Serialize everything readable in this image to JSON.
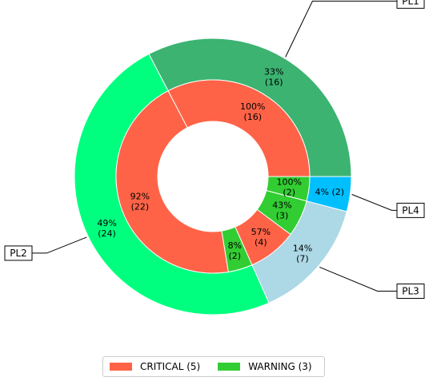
{
  "chart_data": {
    "type": "pie",
    "variant": "nested-donut",
    "outer_ring": [
      {
        "label": "PL1",
        "percent": 33,
        "count": 16,
        "color": "#3cb371"
      },
      {
        "label": "PL2",
        "percent": 49,
        "count": 24,
        "color": "#00ff7f"
      },
      {
        "label": "PL3",
        "percent": 14,
        "count": 7,
        "color": "#add8e6"
      },
      {
        "label": "PL4",
        "percent": 4,
        "count": 2,
        "color": "#00bfff"
      }
    ],
    "inner_ring": [
      {
        "group": "PL1",
        "status": "CRITICAL",
        "percent": 100,
        "count": 16,
        "color": "#ff6347"
      },
      {
        "group": "PL2",
        "status": "CRITICAL",
        "percent": 92,
        "count": 22,
        "color": "#ff6347"
      },
      {
        "group": "PL2",
        "status": "WARNING",
        "percent": 8,
        "count": 2,
        "color": "#32cd32"
      },
      {
        "group": "PL3",
        "status": "CRITICAL",
        "percent": 57,
        "count": 4,
        "color": "#ff6347"
      },
      {
        "group": "PL3",
        "status": "WARNING",
        "percent": 43,
        "count": 3,
        "color": "#32cd32"
      },
      {
        "group": "PL4",
        "status": "WARNING",
        "percent": 100,
        "count": 2,
        "color": "#32cd32"
      }
    ],
    "legend": [
      {
        "label": "CRITICAL (5)",
        "color": "#ff6347"
      },
      {
        "label": "WARNING (3)",
        "color": "#32cd32"
      }
    ],
    "legend_position": "bottom-center",
    "start_angle_deg": 0,
    "direction": "counterclockwise"
  }
}
